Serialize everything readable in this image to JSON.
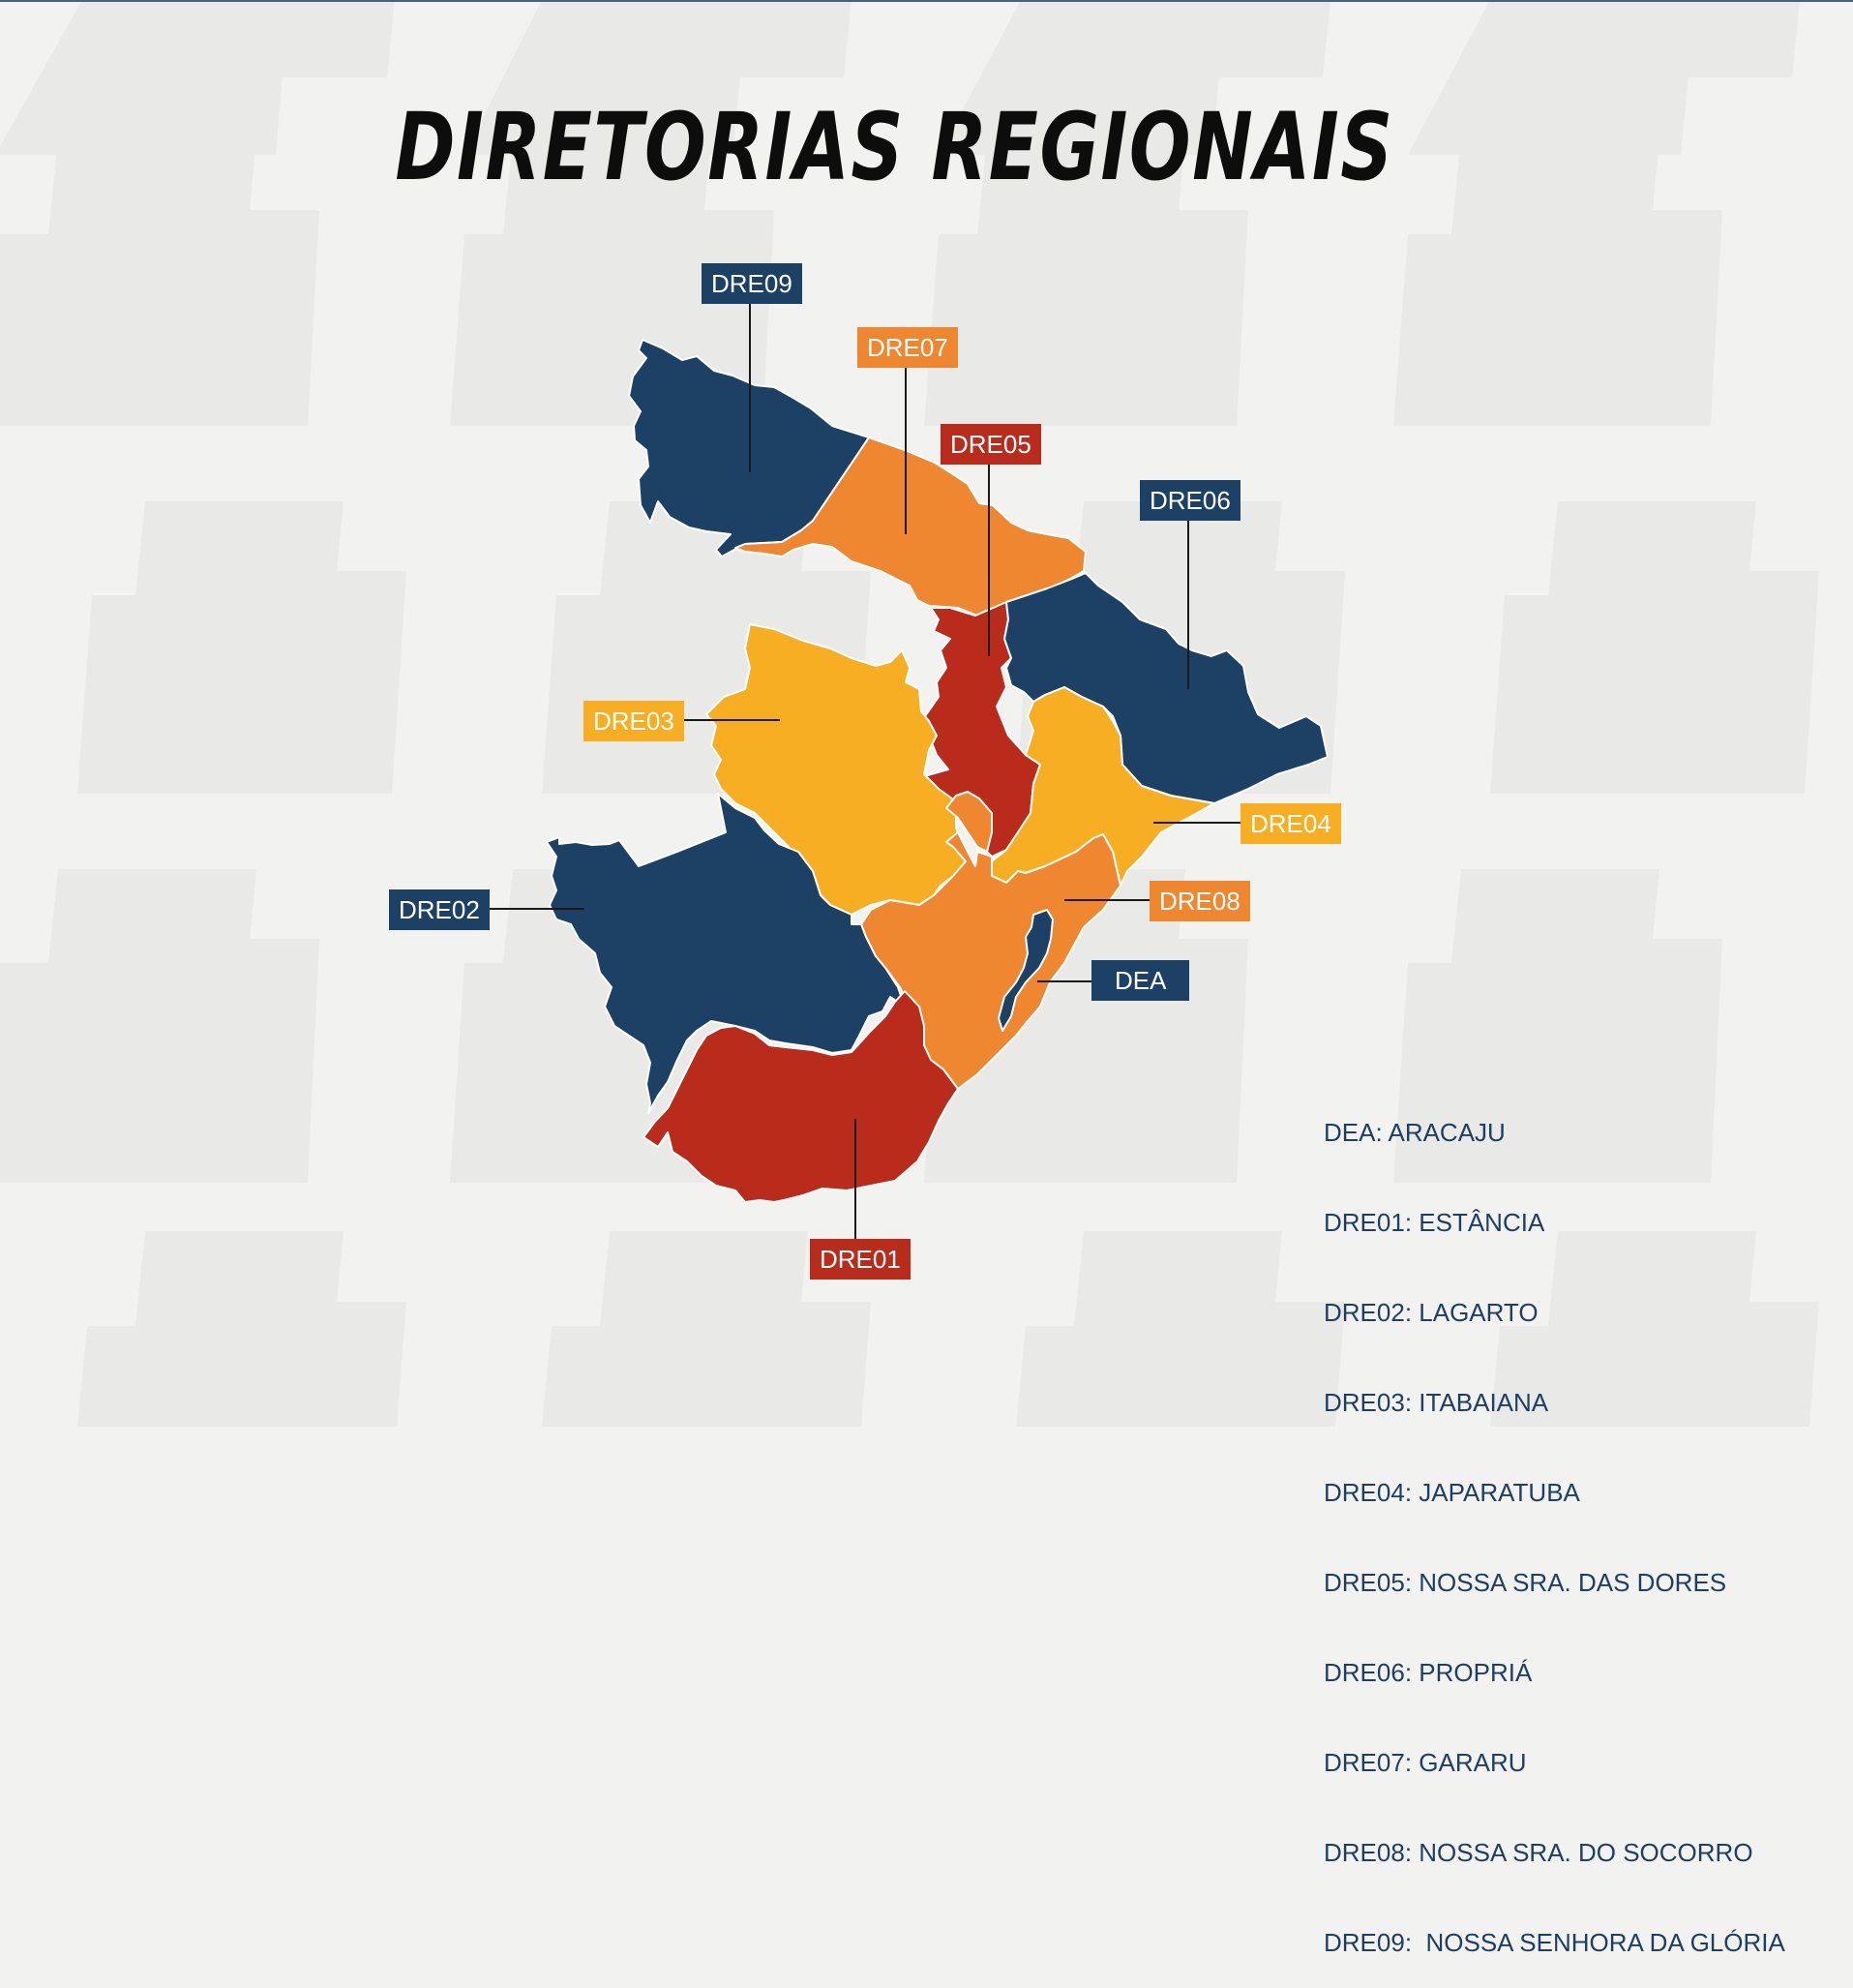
{
  "title": "DIRETORIAS REGIONAIS",
  "colors": {
    "navy": "#1d4164",
    "orange": "#ef8731",
    "red": "#b92c1c",
    "yellow": "#f7ae23",
    "background": "#f2f2f0",
    "legend_text": "#1e3f63"
  },
  "regions": {
    "dre09": {
      "label": "DRE09",
      "color": "#1d4164"
    },
    "dre07": {
      "label": "DRE07",
      "color": "#ef8731"
    },
    "dre05": {
      "label": "DRE05",
      "color": "#b92c1c"
    },
    "dre06": {
      "label": "DRE06",
      "color": "#1d4164"
    },
    "dre03": {
      "label": "DRE03",
      "color": "#f7ae23"
    },
    "dre04": {
      "label": "DRE04",
      "color": "#f7ae23"
    },
    "dre02": {
      "label": "DRE02",
      "color": "#1d4164"
    },
    "dre08": {
      "label": "DRE08",
      "color": "#ef8731"
    },
    "dea": {
      "label": "DEA",
      "color": "#1d4164"
    },
    "dre01": {
      "label": "DRE01",
      "color": "#b92c1c"
    }
  },
  "legend": [
    "DEA: ARACAJU",
    "DRE01: ESTÂNCIA",
    "DRE02: LAGARTO",
    "DRE03: ITABAIANA",
    "DRE04: JAPARATUBA",
    "DRE05: NOSSA SRA. DAS DORES",
    "DRE06: PROPRIÁ",
    "DRE07: GARARU",
    "DRE08: NOSSA SRA. DO SOCORRO",
    "DRE09:  NOSSA SENHORA DA GLÓRIA"
  ]
}
